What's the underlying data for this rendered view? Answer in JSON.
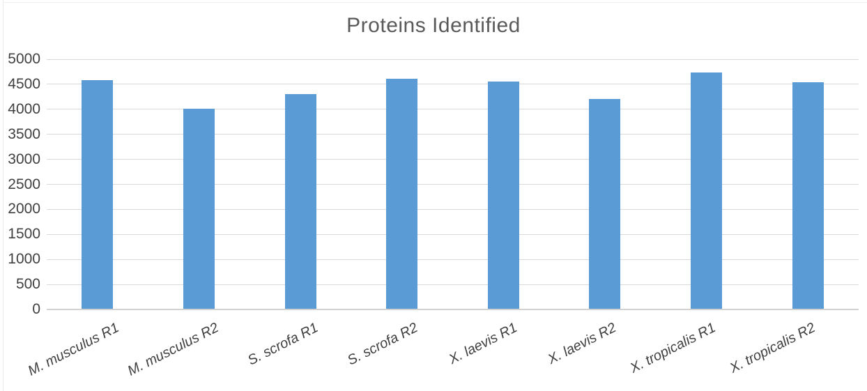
{
  "chart_data": {
    "type": "bar",
    "title": "Proteins Identified",
    "categories": [
      "M. musculus R1",
      "M. musculus R2",
      "S. scrofa R1",
      "S. scrofa R2",
      "X. laevis R1",
      "X. laevis R2",
      "X. tropicalis R1",
      "X. tropicalis R2"
    ],
    "values": [
      4580,
      4010,
      4310,
      4610,
      4550,
      4200,
      4730,
      4540
    ],
    "xlabel": "",
    "ylabel": "",
    "ylim": [
      0,
      5000
    ],
    "ytick_step": 500,
    "ytick_labels": [
      "0",
      "500",
      "1000",
      "1500",
      "2000",
      "2500",
      "3000",
      "3500",
      "4000",
      "4500",
      "5000"
    ],
    "grid": true,
    "legend": false,
    "series_name": "Proteins Identified",
    "colors": {
      "bar": "#5B9BD5",
      "gridline": "#D9D9D9",
      "axis_line": "#D2D2D2",
      "title_text": "#595959",
      "tick_text": "#404040",
      "background": "#FFFFFF"
    }
  }
}
